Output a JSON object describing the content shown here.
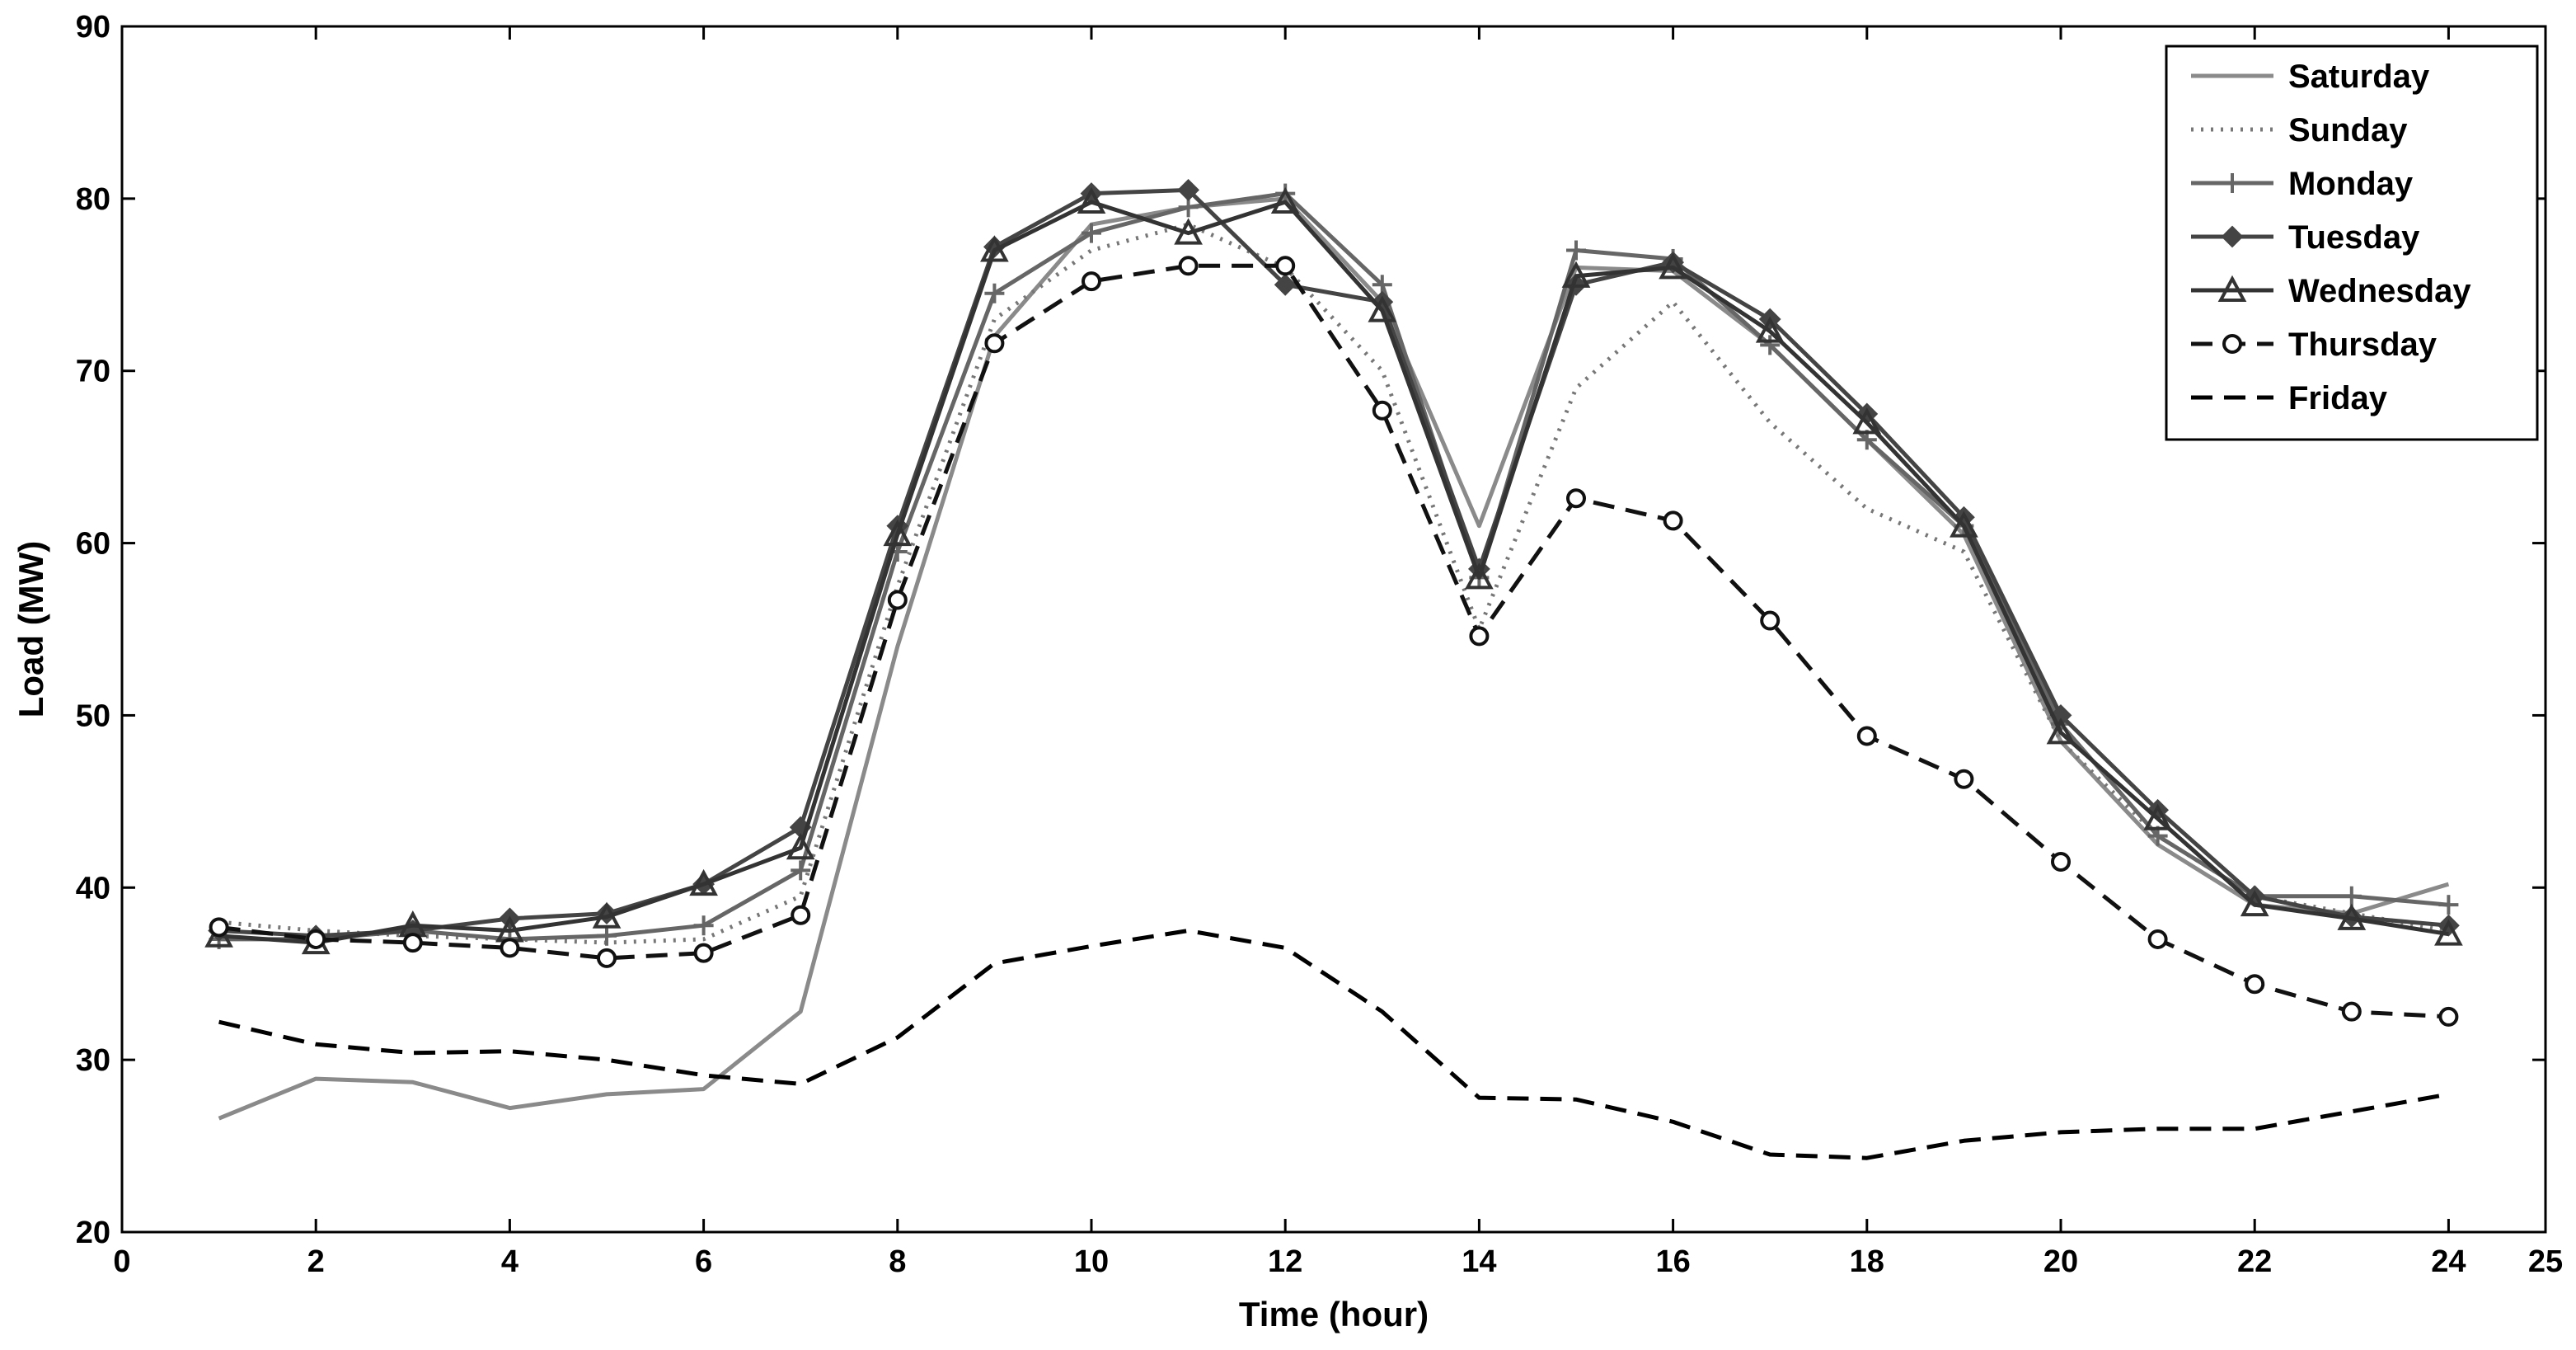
{
  "chart_data": {
    "type": "line",
    "title": "",
    "xlabel": "Time (hour)",
    "ylabel": "Load (MW)",
    "xlim": [
      0,
      25
    ],
    "ylim": [
      20,
      90
    ],
    "xticks": [
      0,
      2,
      4,
      6,
      8,
      10,
      12,
      14,
      16,
      18,
      20,
      22,
      24,
      25
    ],
    "yticks": [
      20,
      30,
      40,
      50,
      60,
      70,
      80,
      90
    ],
    "grid": false,
    "legend_position": "top-right",
    "x": [
      1,
      2,
      3,
      4,
      5,
      6,
      7,
      8,
      9,
      10,
      11,
      12,
      13,
      14,
      15,
      16,
      17,
      18,
      19,
      20,
      21,
      22,
      23,
      24
    ],
    "series": [
      {
        "name": "Saturday",
        "color": "#8a8a8a",
        "line_style": "solid",
        "marker": "none",
        "values": [
          26.6,
          28.9,
          28.7,
          27.2,
          28.0,
          28.3,
          32.8,
          54.0,
          72.0,
          78.5,
          79.5,
          80.0,
          74.0,
          61.0,
          76.0,
          75.8,
          71.5,
          66.0,
          60.5,
          48.5,
          42.5,
          39.0,
          38.5,
          40.2
        ]
      },
      {
        "name": "Sunday",
        "color": "#777777",
        "line_style": "dotted",
        "marker": "none",
        "values": [
          38.0,
          37.5,
          37.2,
          37.0,
          36.8,
          37.0,
          39.5,
          57.5,
          73.0,
          77.0,
          78.5,
          76.0,
          70.0,
          55.0,
          69.0,
          74.0,
          67.0,
          62.0,
          59.5,
          48.5,
          43.0,
          39.5,
          38.5,
          37.5
        ]
      },
      {
        "name": "Monday",
        "color": "#666666",
        "line_style": "solid",
        "marker": "plus",
        "values": [
          37.0,
          37.0,
          37.5,
          37.0,
          37.2,
          37.8,
          41.0,
          59.5,
          74.5,
          78.0,
          79.5,
          80.3,
          75.0,
          58.0,
          77.0,
          76.5,
          71.5,
          66.0,
          61.0,
          49.5,
          43.0,
          39.5,
          39.5,
          39.0
        ]
      },
      {
        "name": "Tuesday",
        "color": "#444444",
        "line_style": "solid",
        "marker": "diamond",
        "values": [
          37.5,
          37.2,
          37.5,
          38.2,
          38.5,
          40.2,
          43.5,
          61.0,
          77.2,
          80.3,
          80.5,
          75.0,
          74.0,
          58.5,
          75.0,
          76.3,
          73.0,
          67.5,
          61.5,
          50.0,
          44.5,
          39.5,
          38.3,
          37.8
        ]
      },
      {
        "name": "Wednesday",
        "color": "#333333",
        "line_style": "solid",
        "marker": "triangle",
        "values": [
          37.2,
          36.8,
          37.8,
          37.5,
          38.3,
          40.2,
          42.3,
          60.5,
          77.0,
          79.8,
          78.0,
          79.8,
          73.5,
          58.0,
          75.5,
          76.0,
          72.3,
          67.0,
          61.0,
          49.0,
          44.0,
          39.0,
          38.2,
          37.3
        ]
      },
      {
        "name": "Thursday",
        "color": "#111111",
        "line_style": "dashed",
        "marker": "circle",
        "values": [
          37.7,
          37.0,
          36.8,
          36.5,
          35.9,
          36.2,
          38.4,
          56.7,
          71.6,
          75.2,
          76.1,
          76.1,
          67.7,
          54.6,
          62.6,
          61.3,
          55.5,
          48.8,
          46.3,
          41.5,
          37.0,
          34.4,
          32.8,
          32.5
        ]
      },
      {
        "name": "Friday",
        "color": "#000000",
        "line_style": "dashed",
        "marker": "none",
        "values": [
          32.2,
          30.9,
          30.4,
          30.5,
          30.0,
          29.1,
          28.6,
          31.3,
          35.6,
          36.6,
          37.5,
          36.5,
          32.8,
          27.8,
          27.7,
          26.4,
          24.5,
          24.3,
          25.3,
          25.8,
          26.0,
          26.0,
          27.0,
          28.0
        ]
      }
    ]
  }
}
